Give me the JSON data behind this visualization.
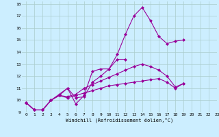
{
  "xlabel": "Windchill (Refroidissement éolien,°C)",
  "background_color": "#cceeff",
  "line_color": "#990099",
  "grid_color": "#aacccc",
  "xlim": [
    -0.5,
    23
  ],
  "ylim": [
    9,
    18.2
  ],
  "yticks": [
    9,
    10,
    11,
    12,
    13,
    14,
    15,
    16,
    17,
    18
  ],
  "xticks": [
    0,
    1,
    2,
    3,
    4,
    5,
    6,
    7,
    8,
    9,
    10,
    11,
    12,
    13,
    14,
    15,
    16,
    17,
    18,
    19,
    20,
    21,
    22,
    23
  ],
  "lines": [
    [
      9.8,
      9.2,
      9.2,
      10.0,
      10.5,
      11.0,
      9.7,
      10.4,
      12.4,
      12.6,
      12.6,
      13.4,
      13.4,
      null,
      null,
      null,
      null,
      null,
      null,
      null,
      null,
      null,
      null
    ],
    [
      9.8,
      9.2,
      9.2,
      10.0,
      10.4,
      11.0,
      10.2,
      10.3,
      11.5,
      12.0,
      12.6,
      13.8,
      15.5,
      17.0,
      17.7,
      16.6,
      15.3,
      14.7,
      14.9,
      15.0,
      null,
      null,
      null
    ],
    [
      9.8,
      9.2,
      9.2,
      10.0,
      10.4,
      10.3,
      10.5,
      11.0,
      11.3,
      11.6,
      11.9,
      12.2,
      12.5,
      12.8,
      13.0,
      12.8,
      12.5,
      12.0,
      11.1,
      11.4,
      null,
      null,
      null
    ],
    [
      9.8,
      9.2,
      9.2,
      10.0,
      10.4,
      10.2,
      10.4,
      10.6,
      10.8,
      11.0,
      11.2,
      11.3,
      11.4,
      11.5,
      11.6,
      11.7,
      11.8,
      11.5,
      11.0,
      11.4,
      null,
      null,
      null
    ]
  ]
}
